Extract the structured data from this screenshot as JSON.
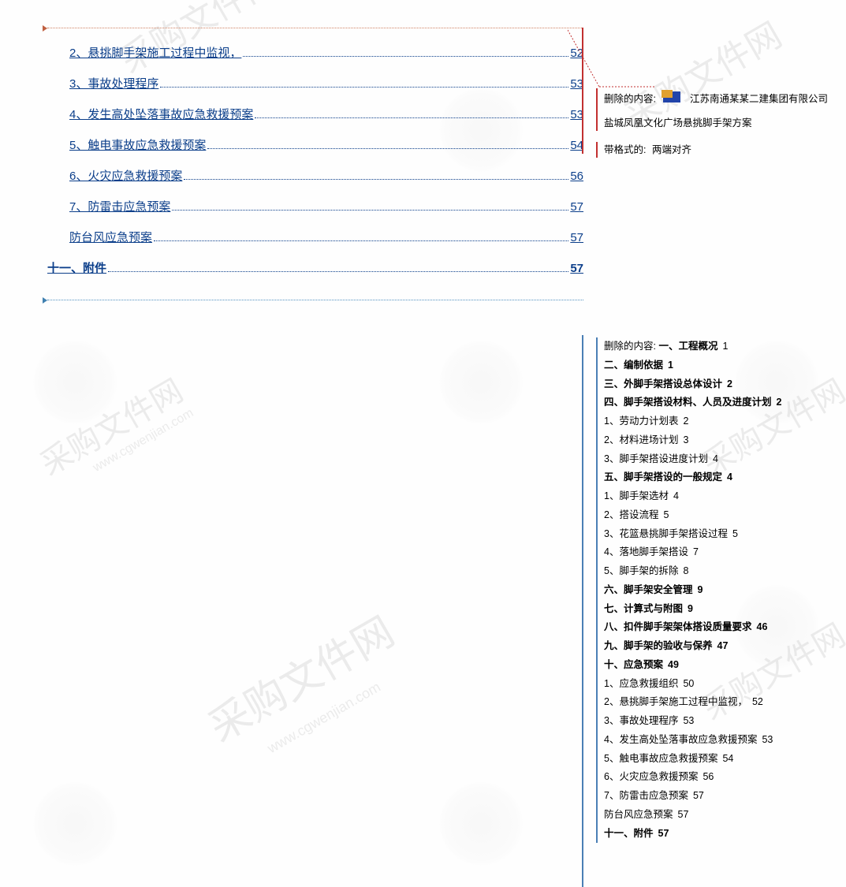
{
  "watermarks": {
    "text": "采购文件网",
    "subtext": "www.cgwenjian.com"
  },
  "toc": [
    {
      "text": "2、悬挑脚手架施工过程中监视，",
      "page": "52",
      "level": 1
    },
    {
      "text": "3、事故处理程序",
      "page": "53",
      "level": 1
    },
    {
      "text": "4、发生高处坠落事故应急救援预案",
      "page": "53",
      "level": 1
    },
    {
      "text": "5、触电事故应急救援预案",
      "page": "54",
      "level": 1
    },
    {
      "text": "6、火灾应急救援预案",
      "page": "56",
      "level": 1
    },
    {
      "text": "7、防雷击应急预案",
      "page": "57",
      "level": 1
    },
    {
      "text": "防台风应急预案",
      "page": "57",
      "level": 1
    },
    {
      "text": "十一、附件",
      "page": "57",
      "level": 0
    }
  ],
  "comment1": {
    "label": "删除的内容:",
    "company": "江苏南通某某二建集团有限公司",
    "subtitle": "盐城凤凰文化广场悬挑脚手架方案"
  },
  "comment2": {
    "label": "带格式的:",
    "value": "两端对齐"
  },
  "deleted": {
    "label": "删除的内容:",
    "items": [
      {
        "t": "一、工程概况",
        "p": "1",
        "b": true
      },
      {
        "t": "二、编制依据",
        "p": "1",
        "b": true
      },
      {
        "t": "三、外脚手架搭设总体设计",
        "p": "2",
        "b": true
      },
      {
        "t": "四、脚手架搭设材料、人员及进度计划",
        "p": "2",
        "b": true
      },
      {
        "t": "1、劳动力计划表",
        "p": "2",
        "b": false
      },
      {
        "t": "2、材料进场计划",
        "p": "3",
        "b": false
      },
      {
        "t": "3、脚手架搭设进度计划",
        "p": "4",
        "b": false
      },
      {
        "t": "五、脚手架搭设的一般规定",
        "p": "4",
        "b": true
      },
      {
        "t": "1、脚手架选材",
        "p": "4",
        "b": false
      },
      {
        "t": "2、搭设流程",
        "p": "5",
        "b": false
      },
      {
        "t": "3、花篮悬挑脚手架搭设过程",
        "p": "5",
        "b": false
      },
      {
        "t": "4、落地脚手架搭设",
        "p": "7",
        "b": false
      },
      {
        "t": "5、脚手架的拆除",
        "p": "8",
        "b": false
      },
      {
        "t": "六、脚手架安全管理",
        "p": "9",
        "b": true
      },
      {
        "t": "七、计算式与附图",
        "p": "9",
        "b": true
      },
      {
        "t": "八、扣件脚手架架体搭设质量要求",
        "p": "46",
        "b": true
      },
      {
        "t": "九、脚手架的验收与保养",
        "p": "47",
        "b": true
      },
      {
        "t": "十、应急预案",
        "p": "49",
        "b": true
      },
      {
        "t": "1、应急救援组织",
        "p": "50",
        "b": false
      },
      {
        "t": "2、悬挑脚手架施工过程中监视，",
        "p": "52",
        "b": false
      },
      {
        "t": "3、事故处理程序",
        "p": "53",
        "b": false
      },
      {
        "t": "4、发生高处坠落事故应急救援预案",
        "p": "53",
        "b": false
      },
      {
        "t": "5、触电事故应急救援预案",
        "p": "54",
        "b": false
      },
      {
        "t": "6、火灾应急救援预案",
        "p": "56",
        "b": false
      },
      {
        "t": "7、防雷击应急预案",
        "p": "57",
        "b": false
      },
      {
        "t": "防台风应急预案",
        "p": "57",
        "b": false
      },
      {
        "t": "十一、附件",
        "p": "57",
        "b": true
      }
    ]
  },
  "colors": {
    "link": "#0b3e8a",
    "commentLineRed": "#c23030",
    "commentLineBlue": "#4a7fb5"
  }
}
